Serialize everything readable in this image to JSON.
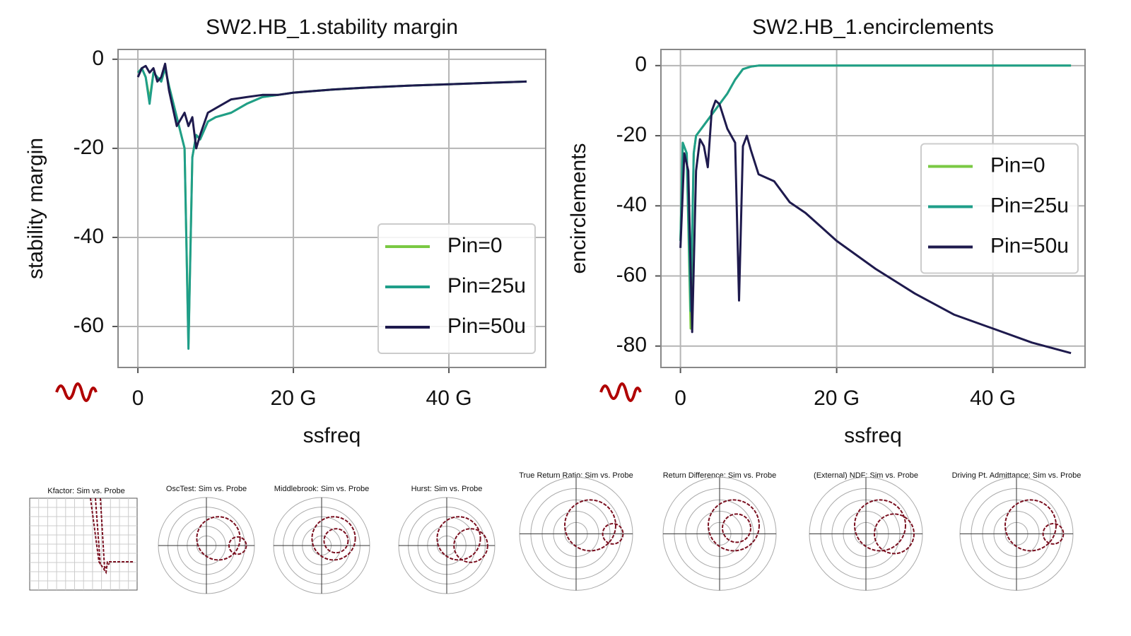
{
  "chart_data": [
    {
      "type": "line",
      "title": "SW2.HB_1.stability margin",
      "x_label": "ssfreq",
      "y_label": "stability margin",
      "xlim": [
        -2.55,
        52.45
      ],
      "ylim": [
        -69.2,
        2.2
      ],
      "xticks": [
        0,
        {
          "value": 20,
          "label": "20 G"
        },
        {
          "value": 40,
          "label": "40 G"
        }
      ],
      "yticks": [
        0,
        -20,
        -40,
        -60
      ],
      "grid": true,
      "legend": "lower right",
      "series": [
        {
          "name": "Pin=0",
          "color": "#7ac943",
          "x": [
            0,
            0.5,
            1,
            1.5,
            2,
            2.5,
            3,
            3.5,
            4,
            5,
            6,
            6.5,
            7,
            7.5,
            8,
            9,
            10,
            12,
            14,
            16,
            18,
            20,
            25,
            30,
            35,
            40,
            45,
            50
          ],
          "values": [
            -3,
            -2,
            -4,
            -9,
            -3,
            -4,
            -5,
            -2,
            -6,
            -13,
            -20,
            -64,
            -22,
            -17,
            -18,
            -14,
            -13,
            -12,
            -10,
            -8.5,
            -8,
            -7.5,
            -6.8,
            -6.3,
            -5.9,
            -5.6,
            -5.3,
            -5
          ]
        },
        {
          "name": "Pin=25u",
          "color": "#1f9e89",
          "x": [
            0,
            0.5,
            1,
            1.5,
            2,
            2.5,
            3,
            3.5,
            4,
            5,
            6,
            6.5,
            7,
            7.5,
            8,
            9,
            10,
            12,
            14,
            16,
            18,
            20,
            25,
            30,
            35,
            40,
            45,
            50
          ],
          "values": [
            -3,
            -2,
            -4,
            -10,
            -3,
            -4,
            -5,
            -2,
            -6,
            -13,
            -20,
            -65,
            -22,
            -17,
            -18,
            -14,
            -13,
            -12,
            -10,
            -8.5,
            -8,
            -7.5,
            -6.8,
            -6.3,
            -5.9,
            -5.6,
            -5.3,
            -5
          ]
        },
        {
          "name": "Pin=50u",
          "color": "#1e1a4d",
          "x": [
            0,
            0.5,
            1,
            1.5,
            2,
            2.5,
            3,
            3.5,
            4,
            5,
            6,
            6.5,
            7,
            7.5,
            8,
            9,
            10,
            12,
            14,
            16,
            18,
            20,
            25,
            30,
            35,
            40,
            45,
            50
          ],
          "values": [
            -4,
            -2,
            -1.5,
            -3,
            -2,
            -5,
            -4,
            -1,
            -7,
            -15,
            -12,
            -15,
            -13,
            -20,
            -17,
            -12,
            -11,
            -9,
            -8.5,
            -8,
            -8,
            -7.5,
            -6.8,
            -6.3,
            -5.9,
            -5.6,
            -5.3,
            -5
          ]
        }
      ]
    },
    {
      "type": "line",
      "title": "SW2.HB_1.encirclements",
      "x_label": "ssfreq",
      "y_label": "encirclements",
      "xlim": [
        -2.5,
        51.8
      ],
      "ylim": [
        -86.1,
        4.6
      ],
      "xticks": [
        0,
        {
          "value": 20,
          "label": "20 G"
        },
        {
          "value": 40,
          "label": "40 G"
        }
      ],
      "yticks": [
        0,
        -20,
        -40,
        -60,
        -80
      ],
      "grid": true,
      "legend": "center right",
      "series": [
        {
          "name": "Pin=0",
          "color": "#7ac943",
          "x": [
            0,
            0.3,
            0.8,
            1.3,
            1.7,
            2,
            3,
            4,
            5,
            6,
            7,
            8,
            9,
            10,
            20,
            30,
            40,
            50
          ],
          "values": [
            -50,
            -22,
            -25,
            -75,
            -25,
            -20,
            -17,
            -14,
            -11,
            -8,
            -4,
            -1,
            -0.3,
            0,
            0,
            0,
            0,
            0
          ]
        },
        {
          "name": "Pin=25u",
          "color": "#1f9e89",
          "x": [
            0,
            0.3,
            0.8,
            1.3,
            1.7,
            2,
            3,
            4,
            5,
            6,
            7,
            8,
            9,
            10,
            20,
            30,
            40,
            50
          ],
          "values": [
            -50,
            -22,
            -25,
            -70,
            -25,
            -20,
            -17,
            -14,
            -11,
            -8,
            -4,
            -1,
            -0.3,
            0,
            0,
            0,
            0,
            0
          ]
        },
        {
          "name": "Pin=50u",
          "color": "#1e1a4d",
          "x": [
            0,
            0.5,
            1,
            1.5,
            2,
            2.5,
            3,
            3.5,
            4,
            4.5,
            5,
            6,
            7,
            7.5,
            8,
            8.5,
            9,
            10,
            12,
            14,
            16,
            18,
            20,
            25,
            30,
            35,
            40,
            45,
            50
          ],
          "values": [
            -52,
            -25,
            -30,
            -76,
            -30,
            -21,
            -23,
            -29,
            -13,
            -10,
            -11,
            -18,
            -22,
            -67,
            -23,
            -20,
            -24,
            -31,
            -33,
            -39,
            -42,
            -46,
            -50,
            -58,
            -65,
            -71,
            -75,
            -79,
            -82
          ]
        }
      ]
    }
  ],
  "thumbnails": [
    {
      "title": "Kfactor: Sim vs. Probe"
    },
    {
      "title": "OscTest: Sim vs. Probe"
    },
    {
      "title": "Middlebrook: Sim vs. Probe"
    },
    {
      "title": "Hurst: Sim vs. Probe"
    },
    {
      "title": "True Return Ratio: Sim vs. Probe"
    },
    {
      "title": "Return Difference: Sim vs. Probe"
    },
    {
      "title": "(External) NDF: Sim vs. Probe"
    },
    {
      "title": "Driving Pt. Admittance: Sim vs. Probe"
    }
  ]
}
